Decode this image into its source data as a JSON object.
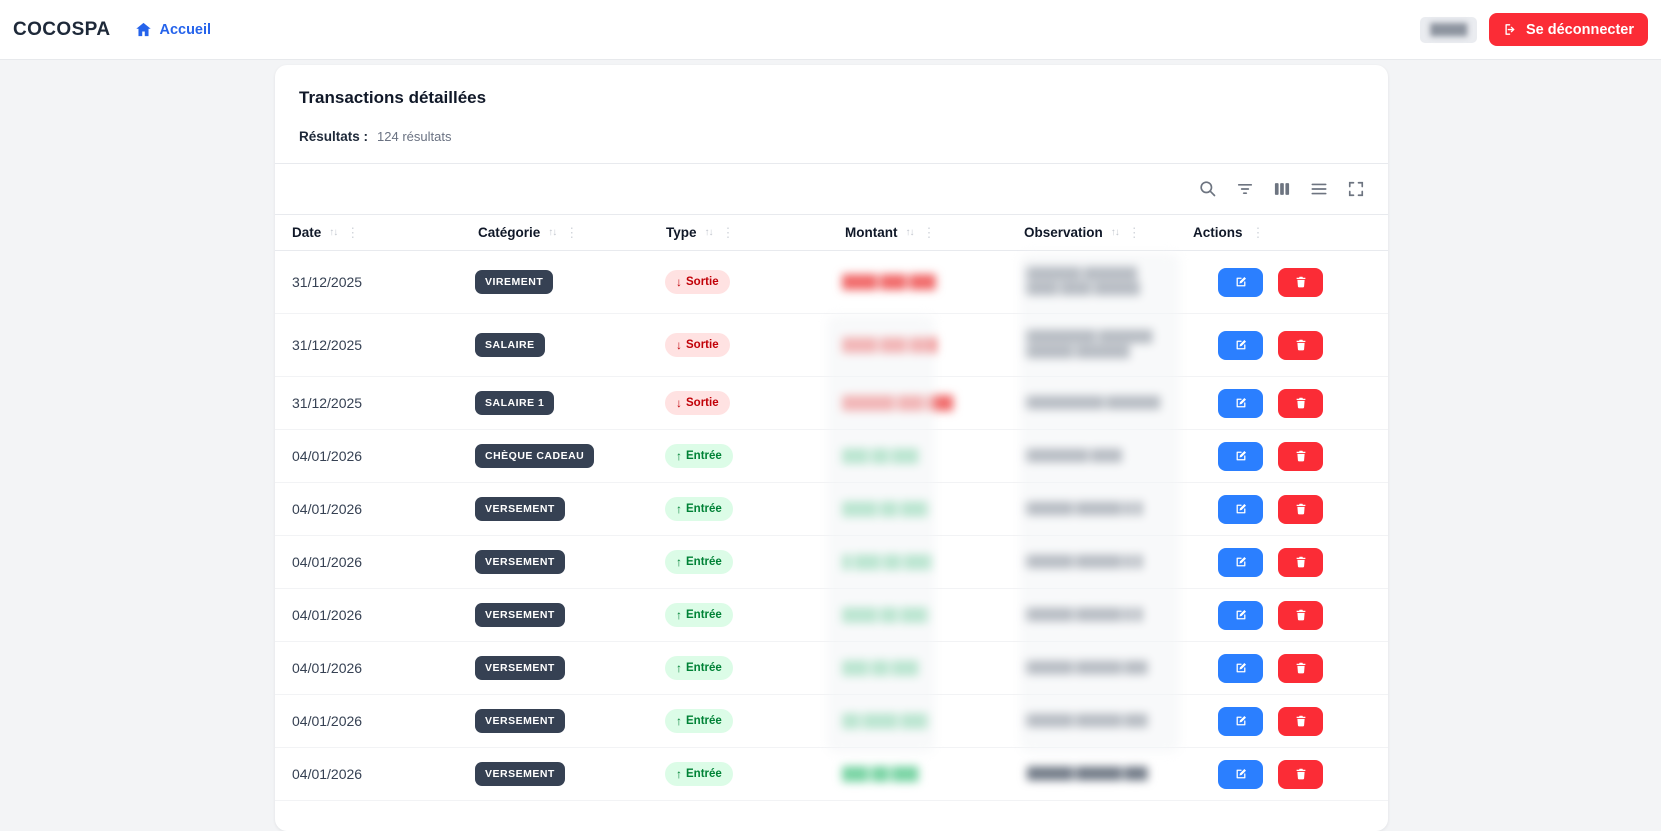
{
  "brand": "COCOSPA",
  "nav": {
    "home": "Accueil"
  },
  "topbar": {
    "user_redacted": "█████",
    "logout": "Se déconnecter"
  },
  "panel": {
    "title": "Transactions détaillées",
    "results_label": "Résultats :",
    "results_value": "124 résultats"
  },
  "toolbar": {
    "icons": [
      "search-icon",
      "filter-icon",
      "columns-icon",
      "density-icon",
      "fullscreen-icon"
    ]
  },
  "table": {
    "columns": [
      {
        "label": "Date",
        "sortable": true
      },
      {
        "label": "Catégorie",
        "sortable": true
      },
      {
        "label": "Type",
        "sortable": true
      },
      {
        "label": "Montant",
        "sortable": true
      },
      {
        "label": "Observation",
        "sortable": true
      },
      {
        "label": "Actions",
        "sortable": false
      }
    ],
    "sort_glyph": "↑↓",
    "menu_glyph": "⋮",
    "arrows": {
      "sortie": "↓",
      "entree": "↑"
    },
    "rows": [
      {
        "date": "31/12/2025",
        "category": "VIREMENT",
        "type": "sortie",
        "type_label": "Sortie",
        "amount_redacted": "████ ███ ███",
        "observation_redacted": [
          "███████ ███████",
          "████ ████ ██████"
        ]
      },
      {
        "date": "31/12/2025",
        "category": "SALAIRE",
        "type": "sortie",
        "type_label": "Sortie",
        "amount_redacted": "████ ███ ███",
        "observation_redacted": [
          "█████████ ███████",
          "██████ ███████"
        ]
      },
      {
        "date": "31/12/2025",
        "category": "SALAIRE 1",
        "type": "sortie",
        "type_label": "Sortie",
        "amount_redacted": "██████ ███ ███",
        "observation_redacted": [
          "██████████ ███████"
        ]
      },
      {
        "date": "04/01/2026",
        "category": "CHÈQUE CADEAU",
        "type": "entree",
        "type_label": "Entrée",
        "amount_redacted": "███ ██ ███",
        "observation_redacted": [
          "████████ ████"
        ]
      },
      {
        "date": "04/01/2026",
        "category": "VERSEMENT",
        "type": "entree",
        "type_label": "Entrée",
        "amount_redacted": "████ ██ ███",
        "observation_redacted": [
          "██████ ██████ █ █"
        ]
      },
      {
        "date": "04/01/2026",
        "category": "VERSEMENT",
        "type": "entree",
        "type_label": "Entrée",
        "amount_redacted": "█ ███ ██ ███",
        "observation_redacted": [
          "██████ ██████ █ █"
        ]
      },
      {
        "date": "04/01/2026",
        "category": "VERSEMENT",
        "type": "entree",
        "type_label": "Entrée",
        "amount_redacted": "████ ██ ███",
        "observation_redacted": [
          "██████ ██████ █ █"
        ]
      },
      {
        "date": "04/01/2026",
        "category": "VERSEMENT",
        "type": "entree",
        "type_label": "Entrée",
        "amount_redacted": "███ ██ ███",
        "observation_redacted": [
          "██████ ██████ ███"
        ]
      },
      {
        "date": "04/01/2026",
        "category": "VERSEMENT",
        "type": "entree",
        "type_label": "Entrée",
        "amount_redacted": "██ ████ ███",
        "observation_redacted": [
          "██████ ██████ ███"
        ]
      },
      {
        "date": "04/01/2026",
        "category": "VERSEMENT",
        "type": "entree",
        "type_label": "Entrée",
        "amount_redacted": "███ ██ ███",
        "observation_redacted": [
          "██████ ██████ ███"
        ]
      }
    ]
  },
  "colors": {
    "accent_blue": "#2b7fff",
    "accent_red": "#fb2c36",
    "link_blue": "#2563eb",
    "badge_dark": "#364153",
    "sortie_bg": "#ffe2e2",
    "sortie_text": "#c10007",
    "entree_bg": "#dcfce7",
    "entree_text": "#008236"
  }
}
